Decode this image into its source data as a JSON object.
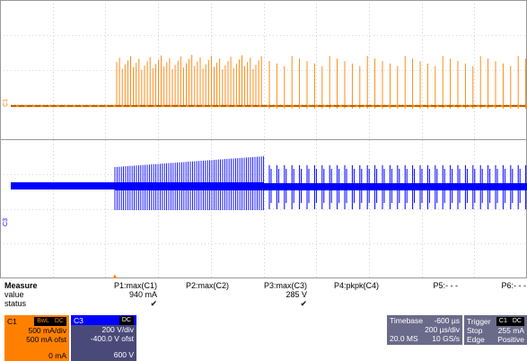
{
  "channels": [
    {
      "id": "C1",
      "color": "#ff8000",
      "marker": "C1"
    },
    {
      "id": "C3",
      "color": "#0000ff",
      "marker": "C3"
    }
  ],
  "trigger_marker": "▲",
  "measure": {
    "title": "Measure",
    "rows": [
      "value",
      "status"
    ],
    "columns": [
      {
        "name": "P1:max(C1)",
        "value": "940 mA",
        "status": "✔"
      },
      {
        "name": "P2:max(C2)",
        "value": "",
        "status": ""
      },
      {
        "name": "P3:max(C3)",
        "value": "285 V",
        "status": "✔"
      },
      {
        "name": "P4:pkpk(C4)",
        "value": "",
        "status": ""
      },
      {
        "name": "P5:- - -",
        "value": "",
        "status": ""
      },
      {
        "name": "P6:- - -",
        "value": "",
        "status": ""
      }
    ]
  },
  "c1_box": {
    "label": "C1",
    "tags": [
      "BwL",
      "DC"
    ],
    "scale": "500 mA/div",
    "offset": "500 mA ofst",
    "bottom": "0 mA"
  },
  "c3_box": {
    "label": "C3",
    "tags": [
      "DC"
    ],
    "scale": "200 V/div",
    "offset": "-400.0 V ofst",
    "bottom": "600 V"
  },
  "timebase": {
    "label": "Timebase",
    "delay": "-600 µs",
    "per_div": "200 µs/div",
    "samples": "20.0 MS",
    "rate": "10 GS/s"
  },
  "trigger": {
    "label": "Trigger",
    "tags": [
      "C1",
      "DC"
    ],
    "mode": "Stop",
    "level": "255 mA",
    "type": "Edge",
    "slope": "Positive"
  },
  "colors": {
    "orange": "#ff8000",
    "blue": "#0000ff",
    "grid": "#b0b0b0",
    "dark_box": "#4a4a6a"
  }
}
